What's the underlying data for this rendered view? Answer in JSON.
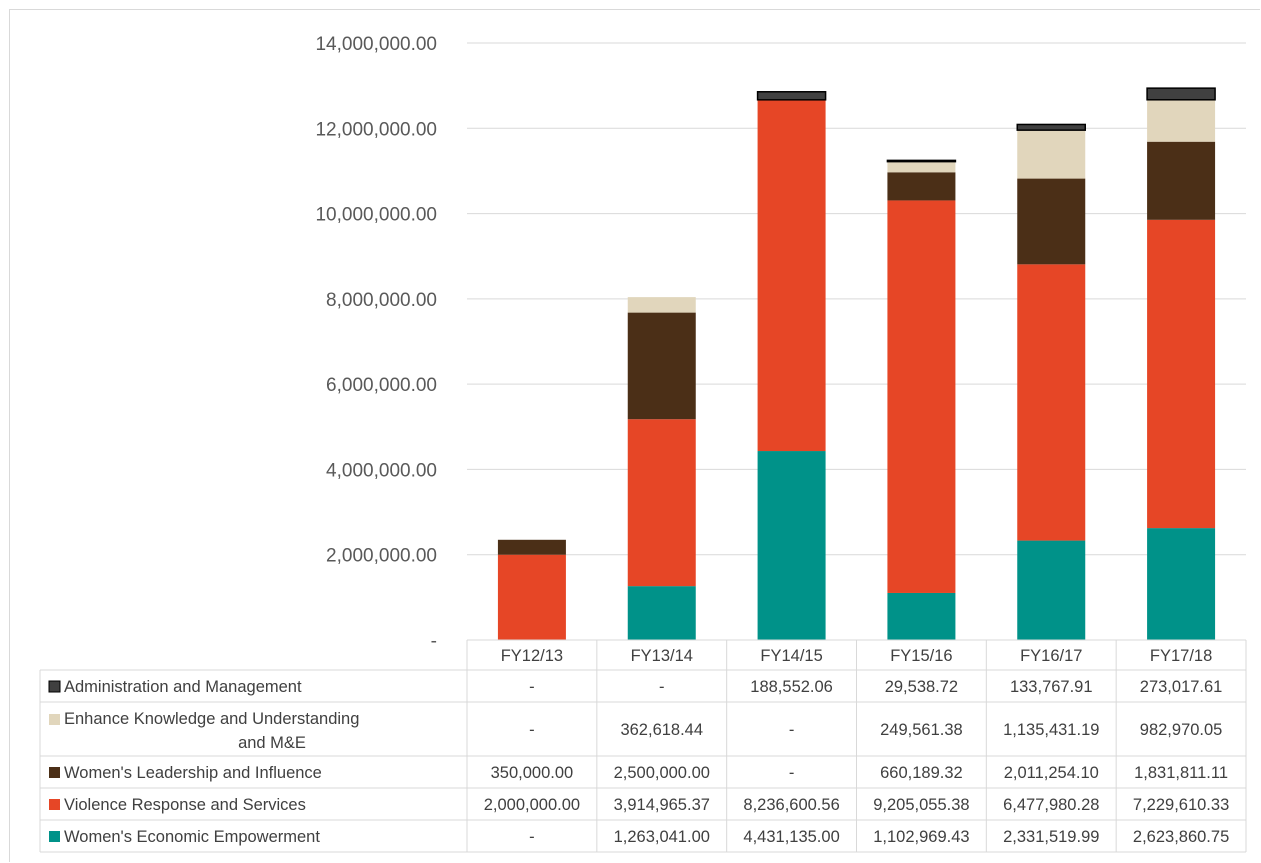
{
  "chart_data": {
    "type": "bar",
    "stacked": true,
    "categories": [
      "FY12/13",
      "FY13/14",
      "FY14/15",
      "FY15/16",
      "FY16/17",
      "FY17/18"
    ],
    "ylim": [
      0,
      14000000
    ],
    "yticks": [
      0,
      2000000,
      4000000,
      6000000,
      8000000,
      10000000,
      12000000,
      14000000
    ],
    "ytick_labels": [
      "-",
      "2,000,000.00",
      "4,000,000.00",
      "6,000,000.00",
      "8,000,000.00",
      "10,000,000.00",
      "12,000,000.00",
      "14,000,000.00"
    ],
    "grid": true,
    "legend_placement": "data table below chart",
    "series": [
      {
        "name": "Women's Economic Empowerment",
        "color": "#009289",
        "values": [
          0,
          1263041.0,
          4431135.0,
          1102969.43,
          2331519.99,
          2623860.75
        ],
        "labels": [
          "-",
          "1,263,041.00",
          "4,431,135.00",
          "1,102,969.43",
          "2,331,519.99",
          "2,623,860.75"
        ]
      },
      {
        "name": "Violence Response and Services",
        "color": "#e64626",
        "values": [
          2000000.0,
          3914965.37,
          8236600.56,
          9205055.38,
          6477980.28,
          7229610.33
        ],
        "labels": [
          "2,000,000.00",
          "3,914,965.37",
          "8,236,600.56",
          "9,205,055.38",
          "6,477,980.28",
          "7,229,610.33"
        ]
      },
      {
        "name": "Women's Leadership and Influence",
        "color": "#4b2f17",
        "values": [
          350000.0,
          2500000.0,
          0,
          660189.32,
          2011254.1,
          1831811.11
        ],
        "labels": [
          "350,000.00",
          "2,500,000.00",
          "-",
          "660,189.32",
          "2,011,254.10",
          "1,831,811.11"
        ]
      },
      {
        "name": "Enhance Knowledge and Understanding and M&E",
        "name_lines": [
          "Enhance Knowledge and Understanding",
          "and M&E"
        ],
        "color": "#e1d6bc",
        "values": [
          0,
          362618.44,
          0,
          249561.38,
          1135431.19,
          982970.05
        ],
        "labels": [
          "-",
          "362,618.44",
          "-",
          "249,561.38",
          "1,135,431.19",
          "982,970.05"
        ]
      },
      {
        "name": "Administration and Management",
        "color": "#404040",
        "values": [
          0,
          0,
          188552.06,
          29538.72,
          133767.91,
          273017.61
        ],
        "labels": [
          "-",
          "-",
          "188,552.06",
          "29,538.72",
          "133,767.91",
          "273,017.61"
        ]
      }
    ]
  }
}
